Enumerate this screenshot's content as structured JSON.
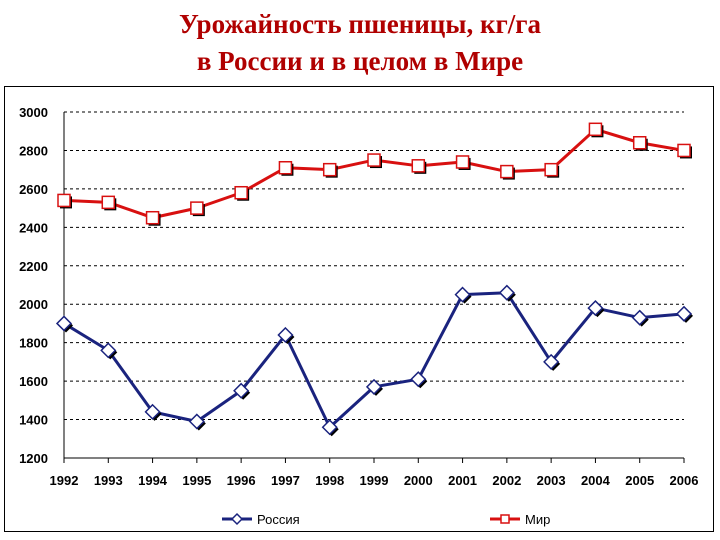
{
  "title_line1": "Урожайность пшеницы, кг/га",
  "title_line2": "в России и в целом в Мире",
  "colors": {
    "title": "#b00000",
    "russia": "#1a237e",
    "world": "#d81010"
  },
  "chart_data": {
    "type": "line",
    "title": "Урожайность пшеницы, кг/га в России и в целом в Мире",
    "xlabel": "",
    "ylabel": "",
    "categories": [
      "1992",
      "1993",
      "1994",
      "1995",
      "1996",
      "1997",
      "1998",
      "1999",
      "2000",
      "2001",
      "2002",
      "2003",
      "2004",
      "2005",
      "2006"
    ],
    "ylim": [
      1200,
      3000
    ],
    "yticks": [
      1200,
      1400,
      1600,
      1800,
      2000,
      2200,
      2400,
      2600,
      2800,
      3000
    ],
    "grid": "horizontal dashed",
    "legend": "bottom",
    "series": [
      {
        "name": "Россия",
        "marker": "diamond",
        "color": "#1a237e",
        "values": [
          1900,
          1760,
          1440,
          1390,
          1550,
          1840,
          1360,
          1570,
          1610,
          2050,
          2060,
          1700,
          1980,
          1930,
          1950
        ]
      },
      {
        "name": "Мир",
        "marker": "square",
        "color": "#d81010",
        "values": [
          2540,
          2530,
          2450,
          2500,
          2580,
          2710,
          2700,
          2750,
          2720,
          2740,
          2690,
          2700,
          2910,
          2840,
          2800
        ]
      }
    ]
  }
}
